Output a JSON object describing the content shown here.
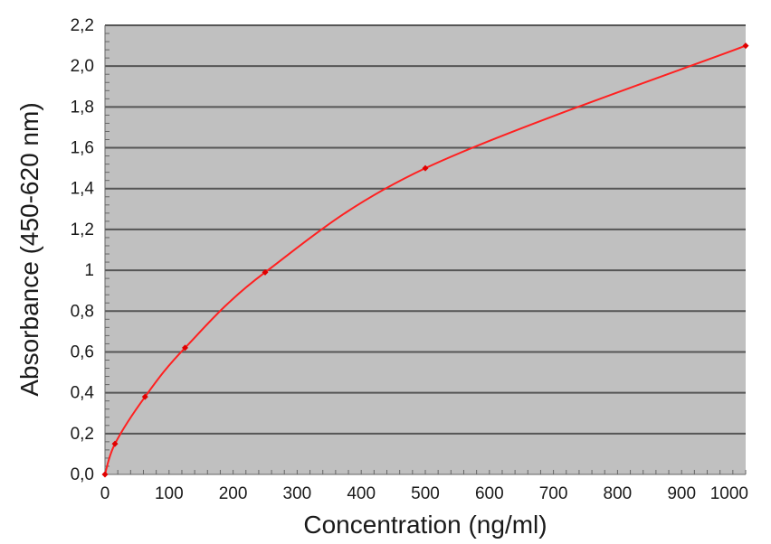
{
  "chart_data": {
    "type": "line",
    "title": "",
    "xlabel": "Concentration (ng/ml)",
    "ylabel": "Absorbance (450-620 nm)",
    "xlim": [
      0,
      1000
    ],
    "ylim": [
      0,
      2.2
    ],
    "xticks": [
      0,
      100,
      200,
      300,
      400,
      500,
      600,
      700,
      800,
      900,
      1000
    ],
    "yticks": [
      0,
      0.2,
      0.4,
      0.6,
      0.8,
      1.0,
      1.2,
      1.4,
      1.6,
      1.8,
      2.0,
      2.2
    ],
    "xtick_labels": [
      "0",
      "100",
      "200",
      "300",
      "400",
      "500",
      "600",
      "700",
      "800",
      "900",
      "1000"
    ],
    "ytick_labels": [
      "0,0",
      "0,2",
      "0,4",
      "0,6",
      "0,8",
      "1",
      "1,2",
      "1,4",
      "1,6",
      "1,8",
      "2,0",
      "2,2"
    ],
    "grid": true,
    "legend": "none",
    "colors": {
      "plot_background": "#c0c0c0",
      "grid": "#555555",
      "line": "#ff2020",
      "marker": "#e00000",
      "axis": "#666666"
    },
    "series": [
      {
        "x": [
          0,
          15.6,
          62.5,
          125,
          250,
          500,
          1000
        ],
        "y": [
          0.0,
          0.15,
          0.38,
          0.62,
          0.99,
          1.5,
          2.1
        ]
      }
    ]
  }
}
